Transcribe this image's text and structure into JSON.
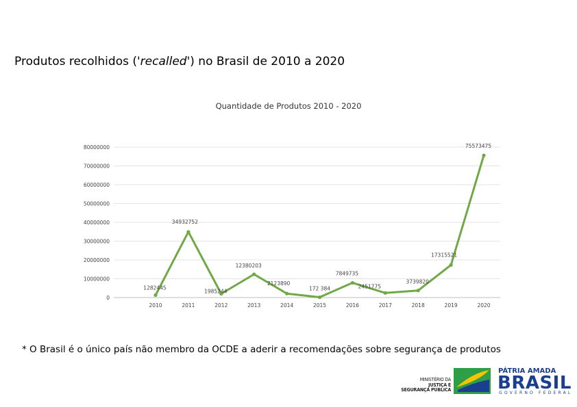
{
  "slide": {
    "title_main": "Produtos recolhidos (",
    "title_italic": "'recalled'",
    "title_rest": ") no Brasil de 2010 a 2020",
    "footnote": "* O Brasil é o único país não membro da OCDE a aderir a recomendações sobre segurança de produtos"
  },
  "chart_data": {
    "type": "line",
    "title": "Quantidade de Produtos 2010 - 2020",
    "categories": [
      "2010",
      "2011",
      "2012",
      "2013",
      "2014",
      "2015",
      "2016",
      "2017",
      "2018",
      "2019",
      "2020"
    ],
    "values": [
      1282445,
      34932752,
      1985244,
      12380203,
      2123890,
      172384,
      7849735,
      2451775,
      3739820,
      17315521,
      75573475
    ],
    "data_labels": [
      "1282445",
      "34932752",
      "1985244",
      "12380203",
      "2123890",
      "172 384",
      "7849735",
      "2451775",
      "3739820",
      "17315521",
      "75573475"
    ],
    "y_ticks": [
      "0",
      "10000000",
      "20000000",
      "30000000",
      "40000000",
      "50000000",
      "60000000",
      "70000000",
      "80000000"
    ],
    "ylim": [
      0,
      80000000
    ],
    "grid": true,
    "color": "#70a845"
  },
  "logo": {
    "ministry_line1": "MINISTÉRIO DA",
    "ministry_line2": "JUSTIÇA E",
    "ministry_line3": "SEGURANÇA PÚBLICA",
    "brand_top": "PÁTRIA AMADA",
    "brand_main": "BRASIL",
    "brand_sub": "GOVERNO FEDERAL",
    "green": "#2e9e47",
    "yellow": "#f5c400",
    "blue": "#1b3f8f"
  }
}
